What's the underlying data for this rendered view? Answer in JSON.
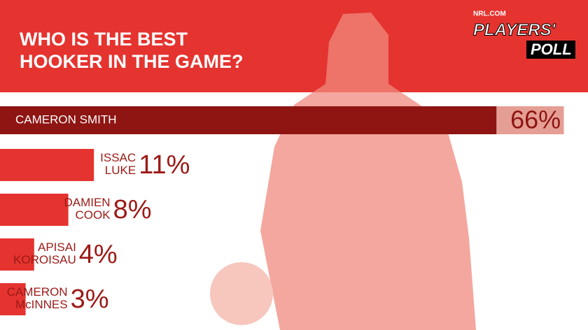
{
  "logo": {
    "site": "NRL.COM",
    "line1": "PLAYERS'",
    "line2": "POLL"
  },
  "chart_data": {
    "type": "bar",
    "orientation": "horizontal",
    "title": "WHO IS THE BEST\nHOOKER IN THE GAME?",
    "categories": [
      "CAMERON SMITH",
      "ISSAC\nLUKE",
      "DAMIEN\nCOOK",
      "APISAI\nKOROISAU",
      "CAMERON\nMcINNES"
    ],
    "values": [
      66,
      11,
      8,
      4,
      3
    ],
    "value_labels": [
      "66%",
      "11%",
      "8%",
      "4%",
      "3%"
    ],
    "color": "#e5332f",
    "highlight_color": "#8e1512"
  }
}
